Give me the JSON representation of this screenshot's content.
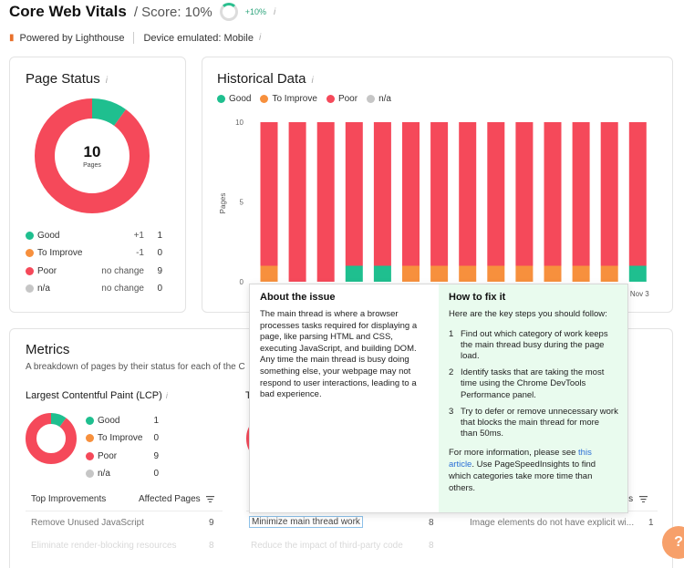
{
  "header": {
    "title": "Core Web Vitals",
    "score": "/ Score: 10%",
    "score_delta": "+10%",
    "info_icon": "i"
  },
  "subbar": {
    "powered_by": "Powered by Lighthouse",
    "device": "Device emulated: Mobile",
    "lighthouse_icon": "lighthouse-icon"
  },
  "colors": {
    "good": "#1fbf8f",
    "improve": "#f7903d",
    "poor": "#f5495a",
    "na": "#c6c6c6",
    "link": "#2b6fd6",
    "fix_bg": "#e9fbee"
  },
  "page_status": {
    "title": "Page Status",
    "total": "10",
    "total_label": "Pages",
    "legend": [
      {
        "name": "Good",
        "change": "+1",
        "count": "1",
        "color": "#1fbf8f"
      },
      {
        "name": "To Improve",
        "change": "-1",
        "count": "0",
        "color": "#f7903d"
      },
      {
        "name": "Poor",
        "change": "no change",
        "count": "9",
        "color": "#f5495a"
      },
      {
        "name": "n/a",
        "change": "no change",
        "count": "0",
        "color": "#c6c6c6"
      }
    ],
    "donut": {
      "good": 1,
      "improve": 0,
      "poor": 9,
      "na": 0
    }
  },
  "historical": {
    "title": "Historical Data",
    "legend": [
      "Good",
      "To Improve",
      "Poor",
      "n/a"
    ]
  },
  "chart_data": {
    "type": "bar",
    "stacked": true,
    "ylabel": "Pages",
    "ylim": [
      0,
      10
    ],
    "yticks": [
      "0",
      "5",
      "10"
    ],
    "categories": [
      "",
      "",
      "",
      "",
      "",
      "",
      "",
      "",
      "",
      "",
      "",
      "",
      "",
      "Nov 3"
    ],
    "series": [
      {
        "name": "Good",
        "color": "#1fbf8f",
        "values": [
          0,
          0,
          0,
          1,
          1,
          0,
          0,
          0,
          0,
          0,
          0,
          0,
          0,
          1
        ]
      },
      {
        "name": "To Improve",
        "color": "#f7903d",
        "values": [
          1,
          0,
          0,
          0,
          0,
          1,
          1,
          1,
          1,
          1,
          1,
          1,
          1,
          0
        ]
      },
      {
        "name": "Poor",
        "color": "#f5495a",
        "values": [
          9,
          10,
          10,
          9,
          9,
          9,
          9,
          9,
          9,
          9,
          9,
          9,
          9,
          9
        ]
      },
      {
        "name": "n/a",
        "color": "#c6c6c6",
        "values": [
          0,
          0,
          0,
          0,
          0,
          0,
          0,
          0,
          0,
          0,
          0,
          0,
          0,
          0
        ]
      }
    ]
  },
  "metrics": {
    "title": "Metrics",
    "description": "A breakdown of pages by their status for each of the C",
    "lcp": {
      "title": "Largest Contentful Paint (LCP)",
      "legend": [
        {
          "name": "Good",
          "count": "1",
          "color": "#1fbf8f"
        },
        {
          "name": "To Improve",
          "count": "0",
          "color": "#f7903d"
        },
        {
          "name": "Poor",
          "count": "9",
          "color": "#f5495a"
        },
        {
          "name": "n/a",
          "count": "0",
          "color": "#c6c6c6"
        }
      ]
    },
    "second_metric_partial_title": "T",
    "table": {
      "col1_header": "Top Improvements",
      "col2_header": "Affected Pages",
      "col3_header_partial": "ges",
      "rows_col1": [
        {
          "text": "Remove Unused JavaScript",
          "count": "9"
        },
        {
          "text": "Eliminate render-blocking resources",
          "count": "8"
        }
      ],
      "rows_col2": [
        {
          "text": "Minimize main thread work",
          "count": "8"
        },
        {
          "text": "Reduce the impact of third-party code",
          "count": "8"
        }
      ],
      "rows_col3": [
        {
          "text": "Image elements do not have explicit wi...",
          "count": "1"
        }
      ]
    }
  },
  "popup": {
    "issue_title": "About the issue",
    "issue_text": "The main thread is where a browser processes tasks required for displaying a page, like parsing HTML and CSS, executing JavaScript, and building DOM. Any time the main thread is busy doing something else, your webpage may not respond to user interactions, leading to a bad experience.",
    "fix_title": "How to fix it",
    "fix_intro": "Here are the key steps you should follow:",
    "steps": [
      {
        "n": "1",
        "text": "Find out which category of work keeps the main thread busy during the page load."
      },
      {
        "n": "2",
        "text": "Identify tasks that are taking the most time using the Chrome DevTools Performance panel."
      },
      {
        "n": "3",
        "text": "Try to defer or remove unnecessary work that blocks the main thread for more than 50ms."
      }
    ],
    "more_prefix": "For more information, please see",
    "more_link": "this article",
    "more_suffix": ". Use PageSpeedInsights to find which categories take more time than others."
  },
  "fab": {
    "label": "?"
  }
}
